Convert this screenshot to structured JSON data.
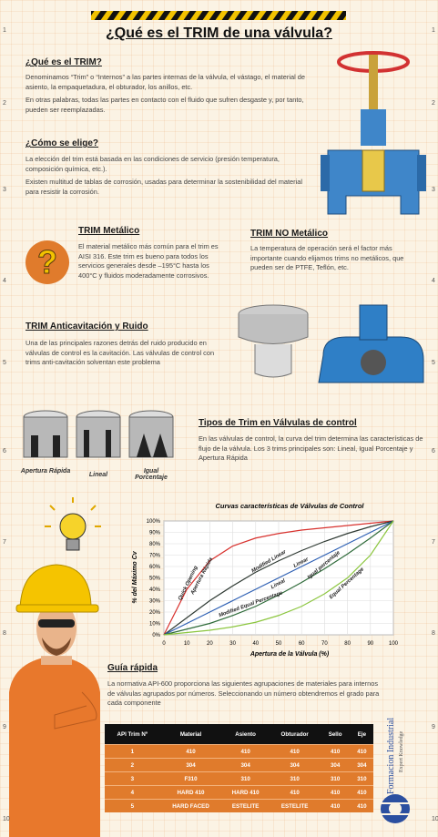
{
  "margin_numbers": [
    "1",
    "2",
    "3",
    "4",
    "5",
    "6",
    "7",
    "8",
    "9",
    "10"
  ],
  "title": "¿Qué es el TRIM de una válvula?",
  "que_es": {
    "heading": "¿Qué es el TRIM?",
    "paragraphs": [
      "Denominamos “Trim” o “Internos” a las partes internas de la válvula, el vástago, el material de asiento, la empaquetadura, el obturador, los anillos, etc.",
      "En otras palabras, todas las partes en contacto con el fluido que sufren desgaste y, por tanto, pueden ser reemplazadas."
    ]
  },
  "como_se_elige": {
    "heading": "¿Cómo se elige?",
    "paragraphs": [
      "La elección del trim está basada en las condiciones de servicio (presión temperatura, composición química, etc.).",
      "Existen multitud de tablas de corrosión, usadas para determinar la sostenibilidad del material para resistir la corrosión."
    ]
  },
  "trim_metalico": {
    "heading": "TRIM Metálico",
    "text": "El material metálico más común para el trim es AISI 316. Este trim es bueno para todos los servicios generales desde –195°C hasta los 400°C y fluidos moderadamente corrosivos."
  },
  "trim_no_metalico": {
    "heading": "TRIM NO Metálico",
    "text": "La temperatura de operación será el factor más importante cuando elijamos trims no metálicos, que pueden ser de PTFE, Teflón, etc."
  },
  "trim_anticavitacion": {
    "heading": "TRIM Anticavitación y Ruido",
    "text": "Una de las principales razones detrás del ruido producido en válvulas de control es la cavitación. Las válvulas de control con trims anti-cavitación solventan este problema"
  },
  "trim_images": {
    "labels": [
      "Apertura Rápida",
      "Lineal",
      "Igual Porcentaje"
    ]
  },
  "tipos_de_trim": {
    "heading": "Tipos de Trim en Válvulas de control",
    "text": "En las válvulas de control, la curva del trim determina las características de flujo de la válvula. Los 3 trims principales son: Lineal, Igual Porcentaje y Apertura Rápida"
  },
  "chart_data": {
    "type": "line",
    "title": "Curvas características de Válvulas de Control",
    "x_label": "Apertura de la Válvula (%)",
    "y_label": "% del Máximo Cv",
    "x": [
      0,
      10,
      20,
      30,
      40,
      50,
      60,
      70,
      80,
      90,
      100
    ],
    "xlim": [
      0,
      100
    ],
    "ylim": [
      0,
      100
    ],
    "xticks": [
      0,
      10,
      20,
      30,
      40,
      50,
      60,
      70,
      80,
      90,
      100
    ],
    "yticks": [
      {
        "value": 0,
        "label": "0%"
      },
      {
        "value": 10,
        "label": "10%"
      },
      {
        "value": 20,
        "label": "20%"
      },
      {
        "value": 30,
        "label": "30%"
      },
      {
        "value": 40,
        "label": "40%"
      },
      {
        "value": 50,
        "label": "50%"
      },
      {
        "value": 60,
        "label": "60%"
      },
      {
        "value": 70,
        "label": "70%"
      },
      {
        "value": 80,
        "label": "80%"
      },
      {
        "value": 90,
        "label": "90%"
      },
      {
        "value": 100,
        "label": "100%"
      }
    ],
    "grid": true,
    "series": [
      {
        "name": "Quick Opening",
        "color": "#d8322e",
        "values": [
          0,
          40,
          65,
          78,
          85,
          89,
          92,
          94,
          96,
          98,
          100
        ]
      },
      {
        "name": "Modified Linear",
        "color": "#2f3a33",
        "values": [
          0,
          15,
          30,
          43,
          55,
          65,
          74,
          82,
          89,
          95,
          100
        ]
      },
      {
        "name": "Linear",
        "color": "#2d5fb3",
        "values": [
          0,
          10,
          20,
          30,
          40,
          50,
          60,
          70,
          80,
          90,
          100
        ]
      },
      {
        "name": "Modified Equal Percentage",
        "color": "#2f6b3a",
        "values": [
          0,
          5,
          10,
          17,
          25,
          35,
          46,
          58,
          71,
          85,
          100
        ]
      },
      {
        "name": "Equal Percentage",
        "color": "#8cc63f",
        "values": [
          0,
          2,
          4,
          7,
          11,
          17,
          25,
          36,
          50,
          70,
          100
        ]
      }
    ],
    "annotations": [
      "Apertura Rápida",
      "Lineal",
      "Igual porcentaje"
    ]
  },
  "guia_rapida": {
    "heading": "Guía rápida",
    "text": "La normativa API-600 proporciona las siguientes agrupaciones de materiales para internos de válvulas agrupados por números. Seleccionando un número obtendremos el grado para cada componente"
  },
  "table": {
    "header": [
      "API Trim Nº",
      "Material",
      "Asiento",
      "Obturador",
      "Sello",
      "Eje"
    ],
    "rows": [
      [
        "1",
        "410",
        "410",
        "410",
        "410",
        "410"
      ],
      [
        "2",
        "304",
        "304",
        "304",
        "304",
        "304"
      ],
      [
        "3",
        "F310",
        "310",
        "310",
        "310",
        "310"
      ],
      [
        "4",
        "HARD 410",
        "HARD 410",
        "410",
        "410",
        "410"
      ],
      [
        "5",
        "HARD FACED",
        "ESTELITE",
        "ESTELITE",
        "410",
        "410"
      ]
    ]
  },
  "logo": {
    "name": "Formacion Industrial",
    "tagline": "Expert Knowledge"
  }
}
